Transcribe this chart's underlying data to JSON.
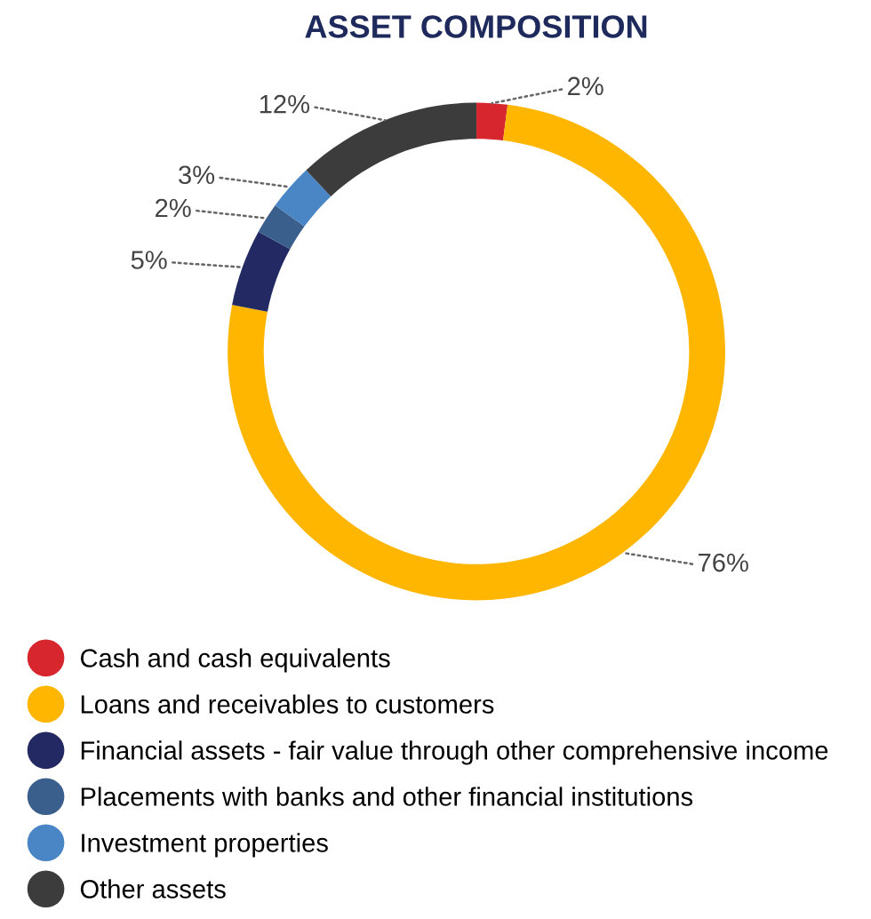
{
  "chart_data": {
    "type": "donut",
    "title": "ASSET COMPOSITION",
    "categories": [
      "Cash and cash equivalents",
      "Loans and receivables to customers",
      "Financial assets - fair value through other comprehensive income",
      "Placements with banks and other financial institutions",
      "Investment properties",
      "Other assets"
    ],
    "values": [
      2,
      76,
      5,
      2,
      3,
      12
    ],
    "colors": [
      "#d7262e",
      "#ffb600",
      "#232a63",
      "#3a5f8c",
      "#4a86c5",
      "#3c3c3c"
    ],
    "value_labels": [
      "2%",
      "76%",
      "5%",
      "2%",
      "3%",
      "12%"
    ],
    "legend": "bottom"
  }
}
